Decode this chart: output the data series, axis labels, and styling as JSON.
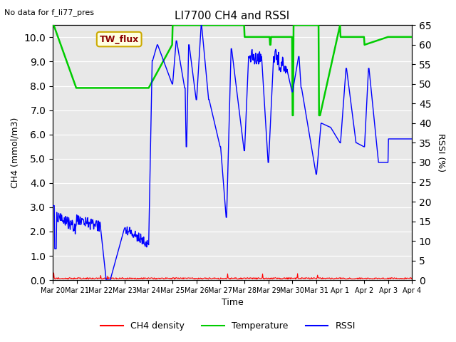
{
  "title": "LI7700 CH4 and RSSI",
  "subtitle": "No data for f_li77_pres",
  "xlabel": "Time",
  "ylabel_left": "CH4 (mmol/m3)",
  "ylabel_right": "RSSI (%)",
  "annotation": "TW_flux",
  "ylim_left": [
    0.0,
    10.5
  ],
  "ylim_right": [
    0,
    68
  ],
  "yticks_left": [
    0.0,
    1.0,
    2.0,
    3.0,
    4.0,
    5.0,
    6.0,
    7.0,
    8.0,
    9.0,
    10.0
  ],
  "yticks_right": [
    0,
    5,
    10,
    15,
    20,
    25,
    30,
    35,
    40,
    45,
    50,
    55,
    60,
    65
  ],
  "xtick_labels": [
    "Mar 20",
    "Mar 21",
    "Mar 22",
    "Mar 23",
    "Mar 24",
    "Mar 25",
    "Mar 26",
    "Mar 27",
    "Mar 28",
    "Mar 29",
    "Mar 30",
    "Mar 31",
    "Apr 1",
    "Apr 2",
    "Apr 3",
    "Apr 4"
  ],
  "n_days": 15,
  "bg_color": "#e8e8e8",
  "grid_color": "#ffffff",
  "line_ch4_color": "#ff0000",
  "line_temp_color": "#00cc00",
  "line_rssi_color": "#0000ff",
  "legend_items": [
    "CH4 density",
    "Temperature",
    "RSSI"
  ],
  "legend_colors": [
    "#ff0000",
    "#00cc00",
    "#0000ff"
  ]
}
